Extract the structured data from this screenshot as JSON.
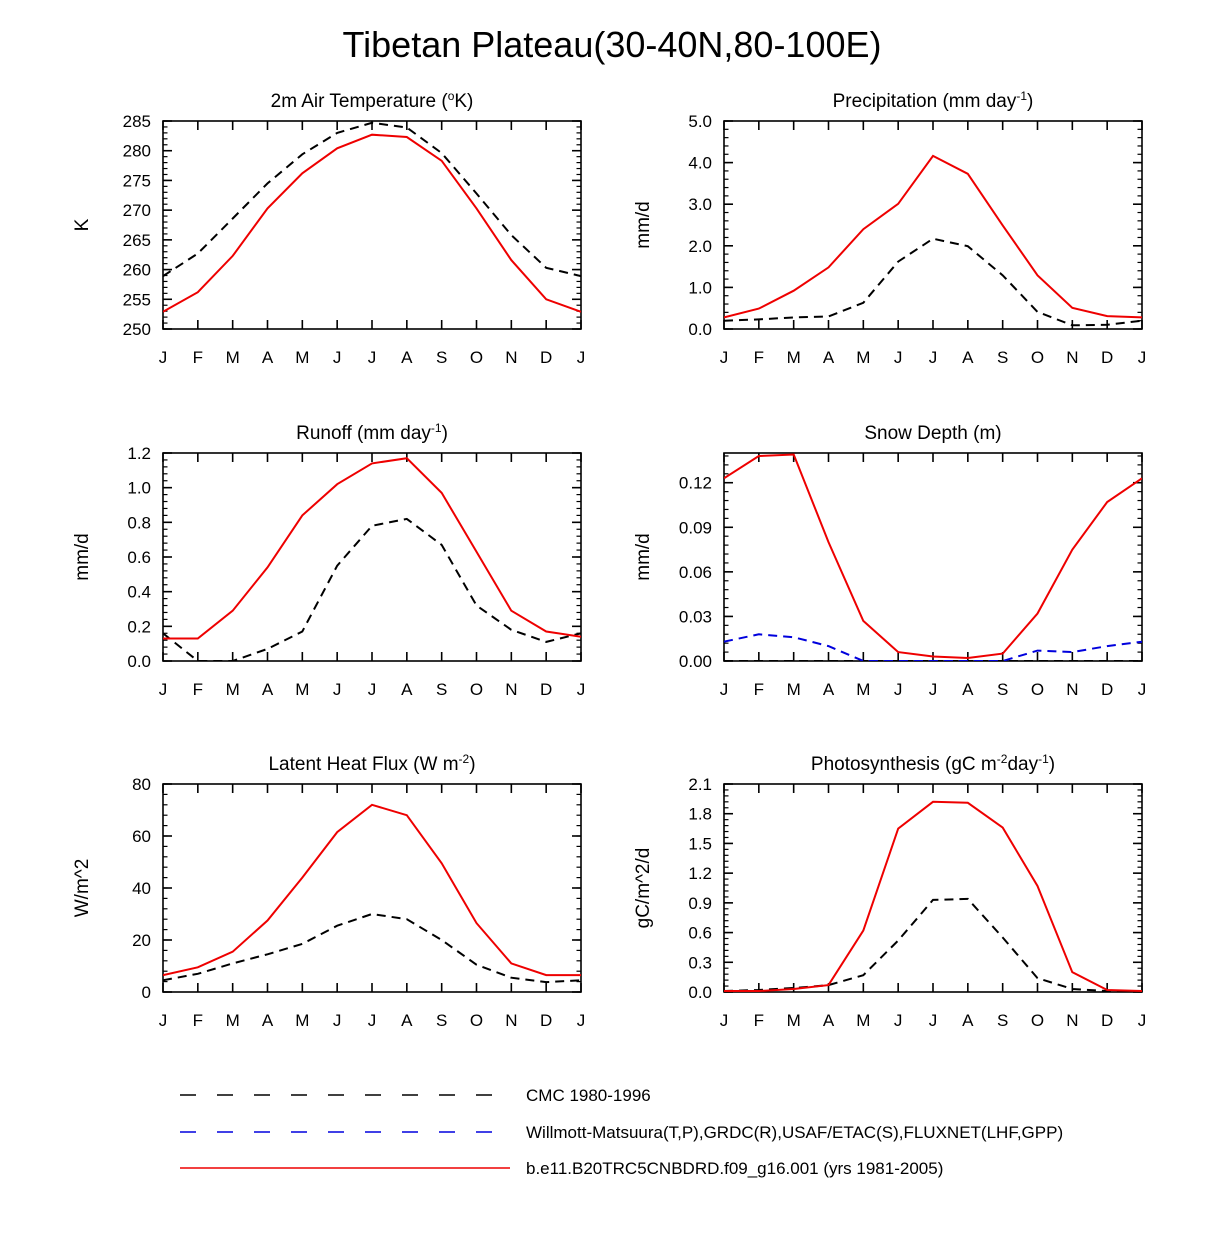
{
  "figure": {
    "title": "Tibetan Plateau(30-40N,80-100E)"
  },
  "months": [
    "J",
    "F",
    "M",
    "A",
    "M",
    "J",
    "J",
    "A",
    "S",
    "O",
    "N",
    "D",
    "J"
  ],
  "colors": {
    "cmc": "#000000",
    "obs": "#0000dd",
    "model": "#ee0000"
  },
  "legend": [
    {
      "key": "cmc",
      "label": "CMC 1980-1996",
      "color": "#000000",
      "dash": true
    },
    {
      "key": "obs",
      "label": "Willmott-Matsuura(T,P),GRDC(R),USAF/ETAC(S),FLUXNET(LHF,GPP)",
      "color": "#0000dd",
      "dash": true
    },
    {
      "key": "model",
      "label": "b.e11.B20TRC5CNBDRD.f09_g16.001 (yrs 1981-2005)",
      "color": "#ee0000",
      "dash": false
    }
  ],
  "chart_data": [
    {
      "type": "line",
      "title": "2m Air Temperature (°K)",
      "title_parts": {
        "pre": "2m Air Temperature (",
        "sup": "o",
        "post": "K)"
      },
      "ylabel": "K",
      "ylim": [
        250,
        285
      ],
      "yticks": [
        250,
        255,
        260,
        265,
        270,
        275,
        280,
        285
      ],
      "ytick_labels": [
        "250",
        "255",
        "260",
        "265",
        "270",
        "275",
        "280",
        "285"
      ],
      "x": [
        "J",
        "F",
        "M",
        "A",
        "M",
        "J",
        "J",
        "A",
        "S",
        "O",
        "N",
        "D",
        "J"
      ],
      "series": [
        {
          "name": "CMC 1980-1996",
          "key": "cmc",
          "values": [
            258.9,
            262.7,
            268.6,
            274.5,
            279.4,
            283.0,
            284.7,
            283.9,
            279.6,
            272.8,
            265.8,
            260.3,
            258.9
          ]
        },
        {
          "name": "b.e11.B20TRC5CNBDRD.f09_g16.001 (yrs 1981-2005)",
          "key": "model",
          "values": [
            252.9,
            256.2,
            262.3,
            270.3,
            276.2,
            280.4,
            282.7,
            282.3,
            278.3,
            270.3,
            261.6,
            255.0,
            252.9
          ]
        }
      ]
    },
    {
      "type": "line",
      "title": "Precipitation (mm day-1)",
      "title_parts": {
        "pre": "Precipitation (mm day",
        "sup": "-1",
        "post": ")"
      },
      "ylabel": "mm/d",
      "ylim": [
        0,
        5
      ],
      "yticks": [
        0,
        1,
        2,
        3,
        4,
        5
      ],
      "ytick_labels": [
        "0.0",
        "1.0",
        "2.0",
        "3.0",
        "4.0",
        "5.0"
      ],
      "x": [
        "J",
        "F",
        "M",
        "A",
        "M",
        "J",
        "J",
        "A",
        "S",
        "O",
        "N",
        "D",
        "J"
      ],
      "series": [
        {
          "name": "CMC 1980-1996",
          "key": "cmc",
          "values": [
            0.2,
            0.23,
            0.28,
            0.3,
            0.63,
            1.62,
            2.17,
            1.99,
            1.29,
            0.41,
            0.09,
            0.1,
            0.2
          ]
        },
        {
          "name": "b.e11.B20TRC5CNBDRD.f09_g16.001 (yrs 1981-2005)",
          "key": "model",
          "values": [
            0.28,
            0.49,
            0.92,
            1.48,
            2.4,
            3.01,
            4.16,
            3.73,
            2.49,
            1.29,
            0.51,
            0.31,
            0.28
          ]
        }
      ]
    },
    {
      "type": "line",
      "title": "Runoff (mm day-1)",
      "title_parts": {
        "pre": "Runoff (mm day",
        "sup": "-1",
        "post": ")"
      },
      "ylabel": "mm/d",
      "ylim": [
        0,
        1.2
      ],
      "yticks": [
        0,
        0.2,
        0.4,
        0.6,
        0.8,
        1.0,
        1.2
      ],
      "ytick_labels": [
        "0.0",
        "0.2",
        "0.4",
        "0.6",
        "0.8",
        "1.0",
        "1.2"
      ],
      "x": [
        "J",
        "F",
        "M",
        "A",
        "M",
        "J",
        "J",
        "A",
        "S",
        "O",
        "N",
        "D",
        "J"
      ],
      "series": [
        {
          "name": "CMC 1980-1996",
          "key": "cmc",
          "values": [
            0.16,
            0.0,
            0.0,
            0.07,
            0.17,
            0.55,
            0.78,
            0.82,
            0.67,
            0.32,
            0.18,
            0.11,
            0.16
          ]
        },
        {
          "name": "b.e11.B20TRC5CNBDRD.f09_g16.001 (yrs 1981-2005)",
          "key": "model",
          "values": [
            0.13,
            0.13,
            0.29,
            0.54,
            0.84,
            1.02,
            1.14,
            1.17,
            0.97,
            0.63,
            0.29,
            0.17,
            0.14
          ]
        }
      ]
    },
    {
      "type": "line",
      "title": "Snow Depth (m)",
      "title_parts": {
        "pre": "Snow Depth (m)",
        "sup": "",
        "post": ""
      },
      "ylabel": "mm/d",
      "ylim": [
        0,
        0.14
      ],
      "yticks": [
        0,
        0.03,
        0.06,
        0.09,
        0.12
      ],
      "ytick_labels": [
        "0.00",
        "0.03",
        "0.06",
        "0.09",
        "0.12"
      ],
      "x": [
        "J",
        "F",
        "M",
        "A",
        "M",
        "J",
        "J",
        "A",
        "S",
        "O",
        "N",
        "D",
        "J"
      ],
      "series": [
        {
          "name": "CMC 1980-1996",
          "key": "cmc",
          "values": [
            0.0,
            0.0,
            0.0,
            0.0,
            0.0,
            0.0,
            0.0,
            0.0,
            0.0,
            0.0,
            0.0,
            0.0,
            0.0
          ]
        },
        {
          "name": "Willmott-Matsuura(T,P),GRDC(R),USAF/ETAC(S),FLUXNET(LHF,GPP)",
          "key": "obs",
          "values": [
            0.013,
            0.018,
            0.016,
            0.01,
            0.0,
            0.0,
            0.0,
            0.0,
            0.0,
            0.007,
            0.006,
            0.01,
            0.013
          ]
        },
        {
          "name": "b.e11.B20TRC5CNBDRD.f09_g16.001 (yrs 1981-2005)",
          "key": "model",
          "values": [
            0.123,
            0.138,
            0.139,
            0.08,
            0.027,
            0.006,
            0.003,
            0.002,
            0.005,
            0.032,
            0.075,
            0.107,
            0.123
          ]
        }
      ]
    },
    {
      "type": "line",
      "title": "Latent Heat Flux (W m-2)",
      "title_parts": {
        "pre": "Latent Heat Flux (W m",
        "sup": "-2",
        "post": ")"
      },
      "ylabel": "W/m^2",
      "ylim": [
        0,
        80
      ],
      "yticks": [
        0,
        20,
        40,
        60,
        80
      ],
      "ytick_labels": [
        "0",
        "20",
        "40",
        "60",
        "80"
      ],
      "x": [
        "J",
        "F",
        "M",
        "A",
        "M",
        "J",
        "J",
        "A",
        "S",
        "O",
        "N",
        "D",
        "J"
      ],
      "series": [
        {
          "name": "CMC 1980-1996",
          "key": "cmc",
          "values": [
            4.5,
            7.0,
            11.0,
            14.5,
            18.5,
            25.5,
            30.0,
            28.0,
            20.0,
            10.5,
            5.5,
            3.8,
            4.5
          ]
        },
        {
          "name": "b.e11.B20TRC5CNBDRD.f09_g16.001 (yrs 1981-2005)",
          "key": "model",
          "values": [
            6.5,
            9.5,
            15.5,
            27.5,
            44.0,
            61.5,
            72.0,
            68.0,
            49.5,
            26.5,
            11.0,
            6.5,
            6.5
          ]
        }
      ]
    },
    {
      "type": "line",
      "title": "Photosynthesis (gC m-2day-1)",
      "title_parts": {
        "pre": "Photosynthesis (gC m",
        "sup": "-2",
        "post": "day",
        "sup2": "-1",
        "post2": ")"
      },
      "ylabel": "gC/m^2/d",
      "ylim": [
        0,
        2.1
      ],
      "yticks": [
        0,
        0.3,
        0.6,
        0.9,
        1.2,
        1.5,
        1.8,
        2.1
      ],
      "ytick_labels": [
        "0.0",
        "0.3",
        "0.6",
        "0.9",
        "1.2",
        "1.5",
        "1.8",
        "2.1"
      ],
      "x": [
        "J",
        "F",
        "M",
        "A",
        "M",
        "J",
        "J",
        "A",
        "S",
        "O",
        "N",
        "D",
        "J"
      ],
      "series": [
        {
          "name": "CMC 1980-1996",
          "key": "cmc",
          "values": [
            0.01,
            0.02,
            0.04,
            0.07,
            0.17,
            0.52,
            0.93,
            0.94,
            0.55,
            0.14,
            0.03,
            0.01,
            0.01
          ]
        },
        {
          "name": "b.e11.B20TRC5CNBDRD.f09_g16.001 (yrs 1981-2005)",
          "key": "model",
          "values": [
            0.01,
            0.01,
            0.03,
            0.07,
            0.62,
            1.65,
            1.92,
            1.91,
            1.66,
            1.07,
            0.2,
            0.02,
            0.01
          ]
        }
      ]
    }
  ]
}
